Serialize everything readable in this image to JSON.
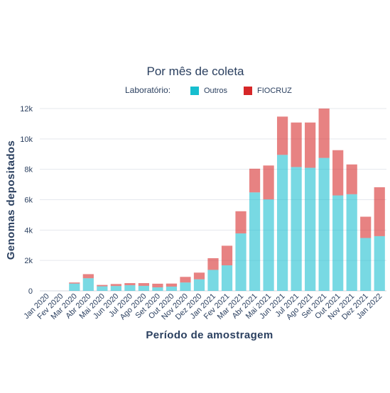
{
  "chart_data": {
    "type": "bar",
    "stacked": true,
    "title": "Por mês de coleta",
    "xlabel": "Período de amostragem",
    "ylabel": "Genomas depositados",
    "ylim": [
      0,
      12000
    ],
    "yticks": [
      {
        "value": 0,
        "label": "0"
      },
      {
        "value": 2000,
        "label": "2k"
      },
      {
        "value": 4000,
        "label": "4k"
      },
      {
        "value": 6000,
        "label": "6k"
      },
      {
        "value": 8000,
        "label": "8k"
      },
      {
        "value": 10000,
        "label": "10k"
      },
      {
        "value": 12000,
        "label": "12k"
      }
    ],
    "grid": true,
    "legend": {
      "title": "Laboratório:",
      "placement": "top-center",
      "orientation": "horizontal"
    },
    "categories": [
      "Jan 2020",
      "Fev 2020",
      "Mar 2020",
      "Abr 2020",
      "Mai 2020",
      "Jun 2020",
      "Jul 2020",
      "Ago 2020",
      "Set 2020",
      "Out 2020",
      "Nov 2020",
      "Dez 2020",
      "Jan 2021",
      "Fev 2021",
      "Mar 2021",
      "Abr 2021",
      "Mai 2021",
      "Jun 2021",
      "Jul 2021",
      "Ago 2021",
      "Set 2021",
      "Out 2021",
      "Nov 2021",
      "Dez 2021",
      "Jan 2022"
    ],
    "series": [
      {
        "name": "Outros",
        "color": "#17becf",
        "values": [
          0,
          0,
          480,
          830,
          300,
          320,
          370,
          330,
          230,
          280,
          550,
          760,
          1380,
          1680,
          3780,
          6480,
          6020,
          8950,
          8150,
          8100,
          8750,
          6280,
          6360,
          3480,
          3600
        ]
      },
      {
        "name": "FIOCRUZ",
        "color": "#d62728",
        "values": [
          0,
          0,
          70,
          270,
          90,
          130,
          140,
          180,
          240,
          200,
          370,
          440,
          770,
          1290,
          1460,
          1560,
          2230,
          2520,
          2930,
          2980,
          3250,
          2980,
          1960,
          1400,
          3220
        ]
      }
    ]
  }
}
